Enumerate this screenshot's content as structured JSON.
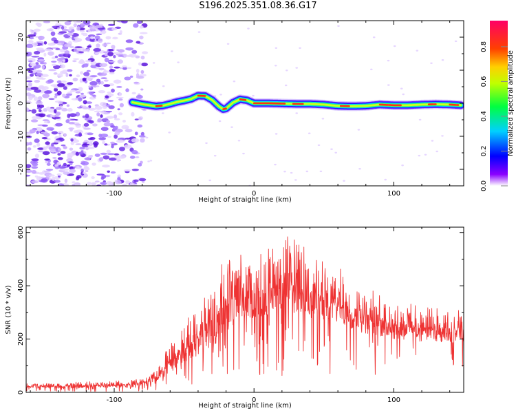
{
  "title": "S196.2025.351.08.36.G17",
  "chart_data": [
    {
      "type": "heatmap",
      "xlabel": "Height of straight line (km)",
      "ylabel": "Frequency (Hz)",
      "xlim": [
        -163,
        150
      ],
      "ylim": [
        -25,
        25
      ],
      "xticks": [
        -100,
        0,
        100
      ],
      "xtick_labels": [
        "-100",
        "0",
        "100"
      ],
      "yticks": [
        -20,
        -10,
        0,
        10,
        20
      ],
      "ytick_labels": [
        "-20",
        "-10",
        "0",
        "10",
        "20"
      ],
      "ridge": {
        "x": [
          -87,
          -80,
          -75,
          -70,
          -65,
          -60,
          -55,
          -50,
          -45,
          -40,
          -35,
          -30,
          -25,
          -22,
          -20,
          -15,
          -10,
          -5,
          0,
          10,
          20,
          30,
          40,
          50,
          60,
          70,
          80,
          90,
          100,
          110,
          120,
          130,
          140,
          148
        ],
        "y": [
          0.3,
          -0.3,
          -0.6,
          -0.9,
          -0.7,
          -0.2,
          0.4,
          0.8,
          1.3,
          2.3,
          2.2,
          1.0,
          -1.0,
          -1.8,
          -1.6,
          0.2,
          1.2,
          0.9,
          0.0,
          0.0,
          -0.1,
          -0.2,
          -0.2,
          -0.4,
          -0.8,
          -0.9,
          -0.8,
          -0.4,
          -0.6,
          -0.6,
          -0.4,
          -0.3,
          -0.4,
          -0.6
        ]
      },
      "noise_region": {
        "x_from": -163,
        "x_to": -78
      }
    },
    {
      "type": "line",
      "xlabel": "Height of straight line (km)",
      "ylabel": "SNR (10 * v/v)",
      "xlim": [
        -163,
        150
      ],
      "ylim": [
        0,
        620
      ],
      "xticks": [
        -100,
        0,
        100
      ],
      "xtick_labels": [
        "-100",
        "0",
        "100"
      ],
      "yticks": [
        0,
        200,
        400,
        600
      ],
      "ytick_labels": [
        "0",
        "200",
        "400",
        "600"
      ],
      "color": "#ee3333",
      "envelope": {
        "x": [
          -163,
          -120,
          -90,
          -80,
          -70,
          -60,
          -50,
          -40,
          -30,
          -20,
          -10,
          0,
          10,
          20,
          30,
          40,
          60,
          80,
          100,
          120,
          150
        ],
        "base": [
          15,
          15,
          18,
          25,
          40,
          70,
          110,
          140,
          170,
          220,
          260,
          280,
          290,
          300,
          295,
          280,
          250,
          220,
          200,
          190,
          185
        ],
        "peak": [
          35,
          40,
          45,
          60,
          90,
          190,
          260,
          330,
          430,
          510,
          520,
          530,
          560,
          610,
          580,
          520,
          470,
          400,
          350,
          320,
          310
        ]
      }
    }
  ],
  "colorbar": {
    "label": "Normalized spectral amplitude",
    "ticks": [
      0.0,
      0.2,
      0.4,
      0.6,
      0.8
    ],
    "tick_labels": [
      "0.0",
      "0.2",
      "0.4",
      "0.6",
      "0.8"
    ],
    "range": [
      0,
      0.95
    ],
    "colors": [
      "#ffffff",
      "#7f00ff",
      "#0000ff",
      "#00ffff",
      "#00ff00",
      "#ffff00",
      "#ff7f00",
      "#ff0000",
      "#ff0066"
    ]
  }
}
